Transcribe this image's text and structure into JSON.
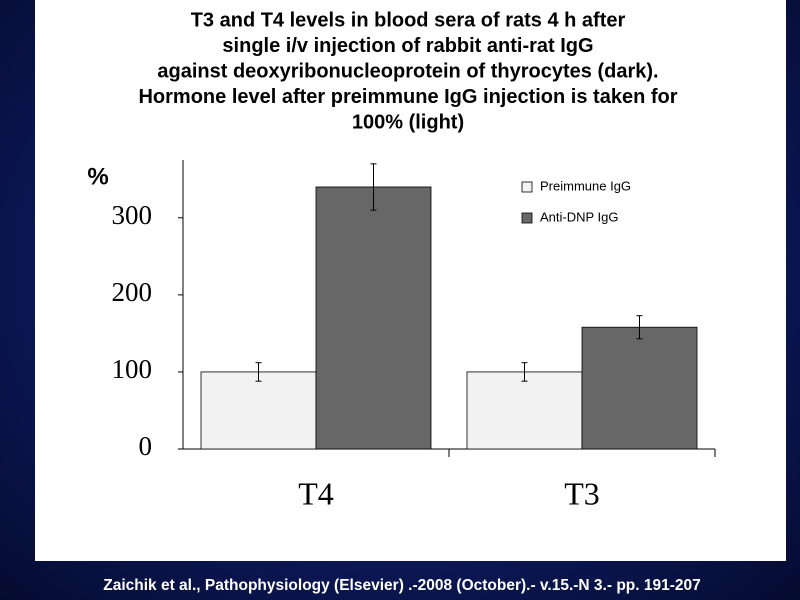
{
  "chart_data": {
    "type": "bar",
    "title": [
      "T3 and T4 levels in blood sera of rats 4 h after",
      "single i/v injection of rabbit anti-rat IgG",
      "against deoxyribonucleoprotein of thyrocytes (dark).",
      "Hormone level after preimmune IgG injection is taken for",
      "100% (light)"
    ],
    "y_label": "%",
    "categories": [
      "T4",
      "T3"
    ],
    "series": [
      {
        "name": "Preimmune IgG",
        "color": "#f2f2f2",
        "values": [
          100,
          100
        ],
        "errors": [
          12,
          12
        ]
      },
      {
        "name": "Anti-DNP IgG",
        "color": "#676767",
        "values": [
          340,
          158
        ],
        "errors": [
          30,
          15
        ]
      }
    ],
    "ylim": [
      0,
      375
    ],
    "yticks": [
      0,
      100,
      200,
      300
    ]
  },
  "footer": "Zaichik et al.,  Pathophysiology (Elsevier) .-2008 (October).- v.15.-N 3.- pp. 191-207"
}
